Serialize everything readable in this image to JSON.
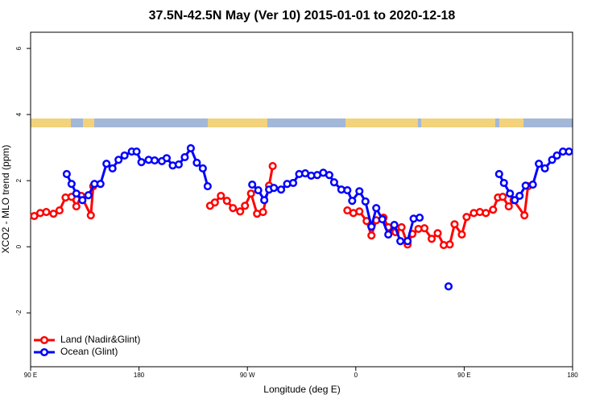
{
  "chart_data": {
    "type": "line",
    "title": "37.5N-42.5N May (Ver 10)   2015-01-01 to 2020-12-18",
    "x_label": "Longitude (deg E)",
    "y_label": "XCO2 - MLO trend (ppm)",
    "xlim": [
      90,
      540
    ],
    "ylim": [
      -3.63,
      6.49
    ],
    "xticks": [
      {
        "value": 90,
        "label": "90 E"
      },
      180,
      {
        "value": 270,
        "label": "90 W"
      },
      0,
      {
        "value": 450,
        "label": "90 E"
      },
      {
        "value": 540,
        "label": "180"
      }
    ],
    "yticks": [
      -2,
      0,
      2,
      4,
      6
    ],
    "legend": "bottom-left",
    "series": [
      {
        "name": "Land (Nadir&Glint)",
        "color": "#ff0000",
        "x": [
          93,
          98,
          103,
          109,
          114,
          119,
          124,
          128,
          132,
          140,
          142,
          null,
          239,
          243,
          248,
          253,
          258,
          264,
          268,
          273,
          278,
          283,
          288,
          291,
          null,
          353,
          358,
          363,
          369,
          373,
          377,
          383,
          387,
          393,
          398,
          403,
          407,
          412,
          417,
          423,
          428,
          433,
          438,
          442,
          448,
          452,
          458,
          463,
          468,
          474,
          478,
          482,
          487,
          491,
          500,
          503
        ],
        "values": [
          0.93,
          1.02,
          1.05,
          1.0,
          1.1,
          1.49,
          1.51,
          1.22,
          1.54,
          0.95,
          1.83,
          null,
          1.24,
          1.34,
          1.54,
          1.39,
          1.17,
          1.07,
          1.24,
          1.61,
          1.0,
          1.05,
          1.85,
          2.44,
          null,
          1.1,
          1.02,
          1.07,
          0.78,
          0.34,
          0.8,
          0.88,
          0.59,
          0.44,
          0.59,
          0.07,
          0.39,
          0.54,
          0.56,
          0.24,
          0.41,
          0.05,
          0.07,
          0.68,
          0.37,
          0.9,
          1.02,
          1.05,
          1.02,
          1.12,
          1.49,
          1.51,
          1.22,
          1.41,
          0.95,
          1.83
        ]
      },
      {
        "name": "Ocean (Glint)",
        "color": "#0000ff",
        "x": [
          120,
          124,
          128,
          133,
          138,
          143,
          148,
          153,
          158,
          163,
          168,
          174,
          178,
          182,
          188,
          193,
          199,
          203,
          208,
          213,
          218,
          223,
          228,
          233,
          237,
          null,
          274,
          279,
          284,
          288,
          292,
          298,
          303,
          308,
          313,
          318,
          323,
          328,
          333,
          338,
          342,
          348,
          353,
          357,
          363,
          368,
          373,
          377,
          382,
          387,
          392,
          397,
          403,
          408,
          413,
          null,
          437,
          null,
          479,
          483,
          488,
          492,
          496,
          501,
          507,
          512,
          517,
          523,
          527,
          532,
          537
        ],
        "values": [
          2.2,
          1.9,
          1.61,
          1.41,
          1.56,
          1.9,
          1.9,
          2.51,
          2.37,
          2.63,
          2.76,
          2.88,
          2.88,
          2.56,
          2.63,
          2.61,
          2.59,
          2.68,
          2.46,
          2.49,
          2.71,
          2.98,
          2.54,
          2.37,
          1.83,
          null,
          1.88,
          1.71,
          1.41,
          1.73,
          1.78,
          1.73,
          1.9,
          1.93,
          2.2,
          2.22,
          2.15,
          2.17,
          2.24,
          2.17,
          1.95,
          1.73,
          1.71,
          1.39,
          1.68,
          1.37,
          0.61,
          1.17,
          0.83,
          0.37,
          0.66,
          0.17,
          0.17,
          0.85,
          0.88,
          null,
          -1.2,
          null,
          2.2,
          1.93,
          1.61,
          1.41,
          1.54,
          1.85,
          1.88,
          2.51,
          2.37,
          2.63,
          2.76,
          2.88,
          2.88
        ]
      }
    ]
  }
}
